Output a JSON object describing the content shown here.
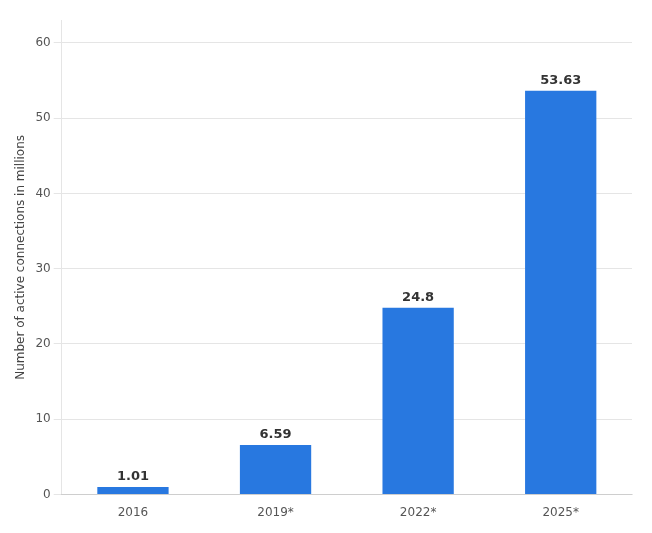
{
  "chart_data": {
    "type": "bar",
    "categories": [
      "2016",
      "2019*",
      "2022*",
      "2025*"
    ],
    "values": [
      1.01,
      6.59,
      24.8,
      53.63
    ],
    "color": "#2878e0",
    "ylabel": "Number of active connections in millions",
    "ylim": [
      0,
      63
    ],
    "yticks": [
      0,
      10,
      20,
      30,
      40,
      50,
      60
    ],
    "grid": true,
    "data_labels": true
  }
}
